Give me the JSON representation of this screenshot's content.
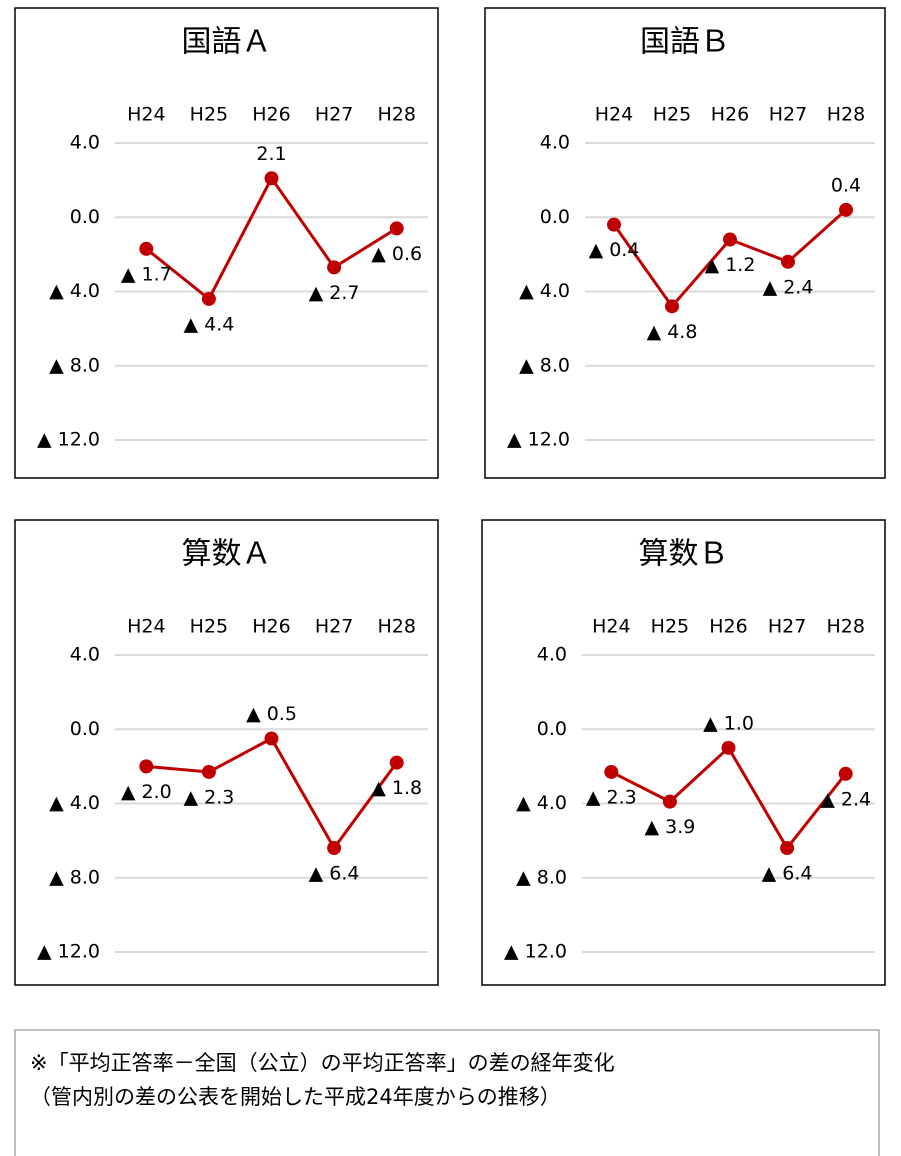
{
  "chart_data": [
    {
      "type": "line",
      "title": "国語Ａ",
      "categories": [
        "H24",
        "H25",
        "H26",
        "H27",
        "H28"
      ],
      "values": [
        -1.7,
        -4.4,
        2.1,
        -2.7,
        -0.6
      ],
      "value_labels": [
        "▲ 1.7",
        "▲ 4.4",
        "2.1",
        "▲ 2.7",
        "▲ 0.6"
      ],
      "color": "#c00000",
      "ylim": [
        -12,
        4
      ],
      "yticks": [
        {
          "value": 4,
          "label": "4.0"
        },
        {
          "value": 0,
          "label": "0.0"
        },
        {
          "value": -4,
          "label": "▲ 4.0"
        },
        {
          "value": -8,
          "label": "▲ 8.0"
        },
        {
          "value": -12,
          "label": "▲ 12.0"
        }
      ],
      "grid": true
    },
    {
      "type": "line",
      "title": "国語Ｂ",
      "categories": [
        "H24",
        "H25",
        "H26",
        "H27",
        "H28"
      ],
      "values": [
        -0.4,
        -4.8,
        -1.2,
        -2.4,
        0.4
      ],
      "value_labels": [
        "▲ 0.4",
        "▲ 4.8",
        "▲ 1.2",
        "▲ 2.4",
        "0.4"
      ],
      "color": "#c00000",
      "ylim": [
        -12,
        4
      ],
      "yticks": [
        {
          "value": 4,
          "label": "4.0"
        },
        {
          "value": 0,
          "label": "0.0"
        },
        {
          "value": -4,
          "label": "▲ 4.0"
        },
        {
          "value": -8,
          "label": "▲ 8.0"
        },
        {
          "value": -12,
          "label": "▲ 12.0"
        }
      ],
      "grid": true
    },
    {
      "type": "line",
      "title": "算数Ａ",
      "categories": [
        "H24",
        "H25",
        "H26",
        "H27",
        "H28"
      ],
      "values": [
        -2.0,
        -2.3,
        -0.5,
        -6.4,
        -1.8
      ],
      "value_labels": [
        "▲ 2.0",
        "▲ 2.3",
        "▲ 0.5",
        "▲ 6.4",
        "▲ 1.8"
      ],
      "color": "#c00000",
      "ylim": [
        -12,
        4
      ],
      "yticks": [
        {
          "value": 4,
          "label": "4.0"
        },
        {
          "value": 0,
          "label": "0.0"
        },
        {
          "value": -4,
          "label": "▲ 4.0"
        },
        {
          "value": -8,
          "label": "▲ 8.0"
        },
        {
          "value": -12,
          "label": "▲ 12.0"
        }
      ],
      "grid": true
    },
    {
      "type": "line",
      "title": "算数Ｂ",
      "categories": [
        "H24",
        "H25",
        "H26",
        "H27",
        "H28"
      ],
      "values": [
        -2.3,
        -3.9,
        -1.0,
        -6.4,
        -2.4
      ],
      "value_labels": [
        "▲ 2.3",
        "▲ 3.9",
        "▲ 1.0",
        "▲ 6.4",
        "▲ 2.4"
      ],
      "color": "#c00000",
      "ylim": [
        -12,
        4
      ],
      "yticks": [
        {
          "value": 4,
          "label": "4.0"
        },
        {
          "value": 0,
          "label": "0.0"
        },
        {
          "value": -4,
          "label": "▲ 4.0"
        },
        {
          "value": -8,
          "label": "▲ 8.0"
        },
        {
          "value": -12,
          "label": "▲ 12.0"
        }
      ],
      "grid": true
    }
  ],
  "note": [
    "※「平均正答率－全国（公立）の平均正答率」の差の経年変化",
    "（管内別の差の公表を開始した平成24年度からの推移）"
  ]
}
